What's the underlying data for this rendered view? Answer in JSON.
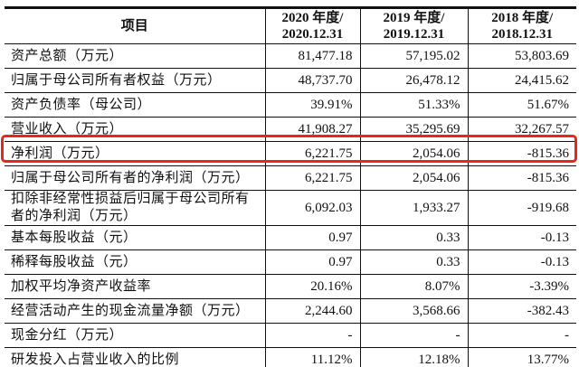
{
  "table": {
    "header": {
      "item": "项目",
      "cols": [
        {
          "line1": "2020 年度/",
          "line2": "2020.12.31"
        },
        {
          "line1": "2019 年度/",
          "line2": "2019.12.31"
        },
        {
          "line1": "2018 年度/",
          "line2": "2018.12.31"
        }
      ]
    },
    "rows": [
      {
        "label": "资产总额（万元）",
        "values": [
          "81,477.18",
          "57,195.02",
          "53,803.69"
        ],
        "tall": false,
        "highlight": false
      },
      {
        "label": "归属于母公司所有者权益（万元）",
        "values": [
          "48,737.70",
          "26,478.12",
          "24,415.62"
        ],
        "tall": false,
        "highlight": false
      },
      {
        "label": "资产负债率（母公司）",
        "values": [
          "39.91%",
          "51.33%",
          "51.67%"
        ],
        "tall": false,
        "highlight": false
      },
      {
        "label": "营业收入（万元）",
        "values": [
          "41,908.27",
          "35,295.69",
          "32,267.57"
        ],
        "tall": false,
        "highlight": false
      },
      {
        "label": "净利润（万元）",
        "values": [
          "6,221.75",
          "2,054.06",
          "-815.36"
        ],
        "tall": false,
        "highlight": true
      },
      {
        "label": "归属于母公司所有者的净利润（万元）",
        "values": [
          "6,221.75",
          "2,054.06",
          "-815.36"
        ],
        "tall": false,
        "highlight": false
      },
      {
        "label": "扣除非经常性损益后归属于母公司所有者的净利润（万元）",
        "values": [
          "6,092.03",
          "1,933.27",
          "-919.68"
        ],
        "tall": true,
        "highlight": false
      },
      {
        "label": "基本每股收益（元）",
        "values": [
          "0.97",
          "0.33",
          "-0.13"
        ],
        "tall": false,
        "highlight": false
      },
      {
        "label": "稀释每股收益（元）",
        "values": [
          "0.97",
          "0.33",
          "-0.13"
        ],
        "tall": false,
        "highlight": false
      },
      {
        "label": "加权平均净资产收益率",
        "values": [
          "20.16%",
          "8.07%",
          "-3.39%"
        ],
        "tall": false,
        "highlight": false
      },
      {
        "label": "经营活动产生的现金流量净额（万元）",
        "values": [
          "2,244.60",
          "3,568.66",
          "-382.43"
        ],
        "tall": false,
        "highlight": false
      },
      {
        "label": "现金分红（万元）",
        "values": [
          "-",
          "-",
          "-"
        ],
        "tall": false,
        "highlight": false
      },
      {
        "label": "研发投入占营业收入的比例",
        "values": [
          "11.12%",
          "12.18%",
          "13.77%"
        ],
        "tall": false,
        "highlight": false
      }
    ]
  },
  "annotation": {
    "highlight_color": "#e8271a"
  }
}
